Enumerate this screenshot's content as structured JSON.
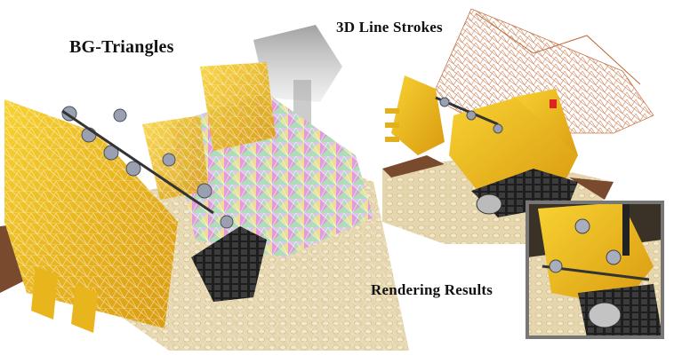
{
  "labels": {
    "bg_triangles": "BG-Triangles",
    "line_strokes": "3D  Line Strokes",
    "rendering_results": "Rendering Results"
  },
  "colors": {
    "lego_yellow": "#f2c01e",
    "baseplate_tan": "#e4d3a8",
    "stroke_orange": "#c8784a",
    "dark_tread": "#2a2a2a",
    "inset_border": "#777777"
  }
}
